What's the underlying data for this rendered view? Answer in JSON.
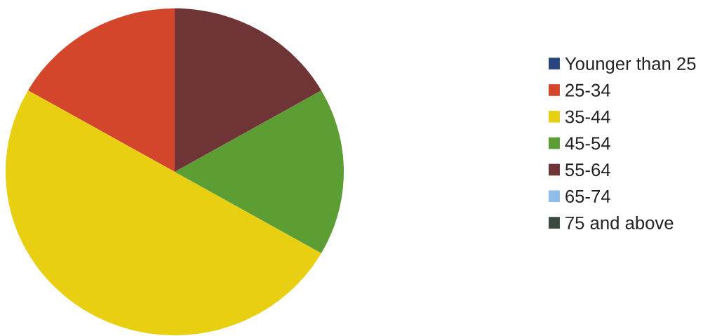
{
  "chart_data": {
    "type": "pie",
    "categories": [
      "Younger than 25",
      "25-34",
      "35-44",
      "45-54",
      "55-64",
      "65-74",
      "75 and above"
    ],
    "values": [
      0,
      16.7,
      50,
      16.6,
      16.7,
      0,
      0
    ],
    "colors": [
      "#27467e",
      "#d4462c",
      "#e8cf12",
      "#5c9e34",
      "#6f3536",
      "#8dbde8",
      "#3b4a3f"
    ],
    "legend": "right"
  }
}
